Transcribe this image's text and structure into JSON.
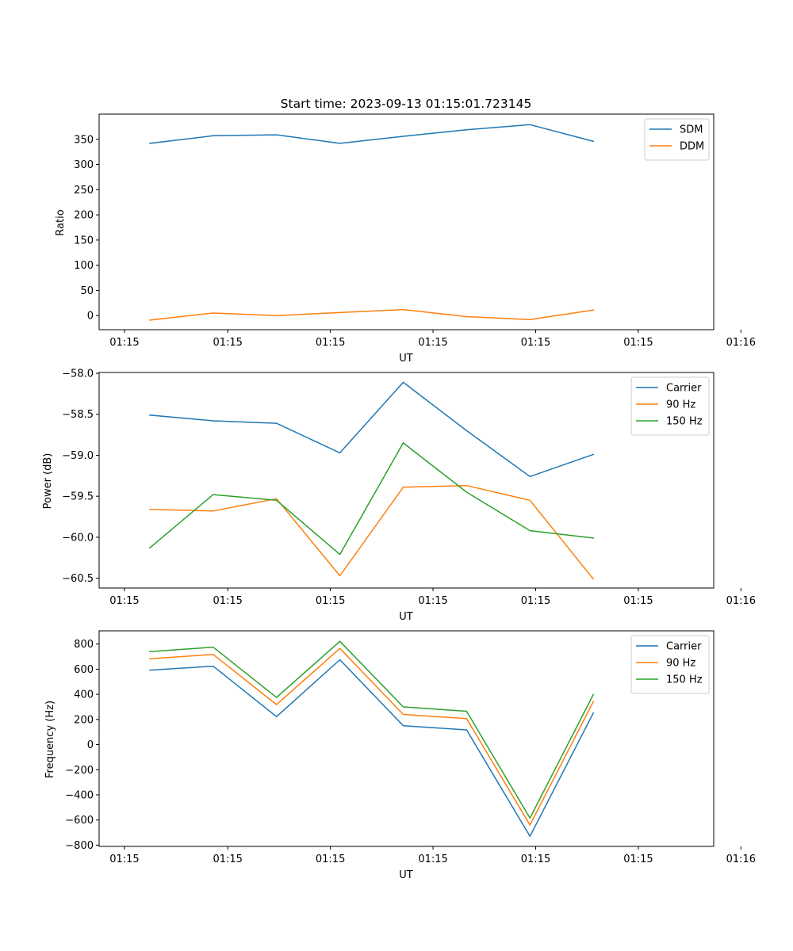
{
  "chart_data": [
    {
      "type": "line",
      "title": "Start time: 2023-09-13 01:15:01.723145",
      "xlabel": "UT",
      "ylabel": "Ratio",
      "xlim": [
        -0.4,
        9.3
      ],
      "x": [
        0.4,
        1.4,
        2.4,
        3.4,
        4.4,
        5.4,
        6.4,
        7.4
      ],
      "xticks": [
        0,
        1.63,
        3.25,
        4.87,
        6.49,
        8.11,
        9.73
      ],
      "xtick_labels": [
        "01:15",
        "01:15",
        "01:15",
        "01:15",
        "01:15",
        "01:15",
        "01:16"
      ],
      "ylim": [
        -28,
        400
      ],
      "yticks": [
        0,
        50,
        100,
        150,
        200,
        250,
        300,
        350
      ],
      "ytick_labels": [
        "0",
        "50",
        "100",
        "150",
        "200",
        "250",
        "300",
        "350"
      ],
      "legend_position": "top-right",
      "series": [
        {
          "name": "SDM",
          "color": "#1f77b4",
          "values": [
            342,
            357,
            359,
            342,
            356,
            369,
            379,
            346
          ]
        },
        {
          "name": "DDM",
          "color": "#ff7f0e",
          "values": [
            -9,
            5,
            0,
            6,
            12,
            -2,
            -8,
            11
          ]
        }
      ]
    },
    {
      "type": "line",
      "title": "",
      "xlabel": "UT",
      "ylabel": "Power (dB)",
      "xlim": [
        -0.4,
        9.3
      ],
      "x": [
        0.4,
        1.4,
        2.4,
        3.4,
        4.4,
        5.4,
        6.4,
        7.4
      ],
      "xticks": [
        0,
        1.63,
        3.25,
        4.87,
        6.49,
        8.11,
        9.73
      ],
      "xtick_labels": [
        "01:15",
        "01:15",
        "01:15",
        "01:15",
        "01:15",
        "01:15",
        "01:16"
      ],
      "ylim": [
        -60.62,
        -57.99
      ],
      "yticks": [
        -60.5,
        -60.0,
        -59.5,
        -59.0,
        -58.5,
        -58.0
      ],
      "ytick_labels": [
        "−60.5",
        "−60.0",
        "−59.5",
        "−59.0",
        "−58.5",
        "−58.0"
      ],
      "legend_position": "top-right",
      "series": [
        {
          "name": "Carrier",
          "color": "#1f77b4",
          "values": [
            -58.51,
            -58.58,
            -58.61,
            -58.97,
            -58.11,
            -58.7,
            -59.26,
            -58.99
          ]
        },
        {
          "name": "90 Hz",
          "color": "#ff7f0e",
          "values": [
            -59.66,
            -59.68,
            -59.53,
            -60.47,
            -59.39,
            -59.37,
            -59.55,
            -60.51
          ]
        },
        {
          "name": "150 Hz",
          "color": "#2ca02c",
          "values": [
            -60.13,
            -59.48,
            -59.55,
            -60.21,
            -58.85,
            -59.45,
            -59.92,
            -60.01
          ]
        }
      ]
    },
    {
      "type": "line",
      "title": "",
      "xlabel": "UT",
      "ylabel": "Frequency (Hz)",
      "xlim": [
        -0.4,
        9.3
      ],
      "x": [
        0.4,
        1.4,
        2.4,
        3.4,
        4.4,
        5.4,
        6.4,
        7.4
      ],
      "xticks": [
        0,
        1.63,
        3.25,
        4.87,
        6.49,
        8.11,
        9.73
      ],
      "xtick_labels": [
        "01:15",
        "01:15",
        "01:15",
        "01:15",
        "01:15",
        "01:15",
        "01:16"
      ],
      "ylim": [
        -810,
        905
      ],
      "yticks": [
        -800,
        -600,
        -400,
        -200,
        0,
        200,
        400,
        600,
        800
      ],
      "ytick_labels": [
        "−800",
        "−600",
        "−400",
        "−200",
        "0",
        "200",
        "400",
        "600",
        "800"
      ],
      "legend_position": "top-right",
      "series": [
        {
          "name": "Carrier",
          "color": "#1f77b4",
          "values": [
            592,
            624,
            222,
            675,
            150,
            117,
            -730,
            252
          ]
        },
        {
          "name": "90 Hz",
          "color": "#ff7f0e",
          "values": [
            683,
            717,
            318,
            765,
            240,
            207,
            -640,
            342
          ]
        },
        {
          "name": "150 Hz",
          "color": "#2ca02c",
          "values": [
            740,
            775,
            375,
            822,
            300,
            265,
            -585,
            398
          ]
        }
      ]
    }
  ]
}
